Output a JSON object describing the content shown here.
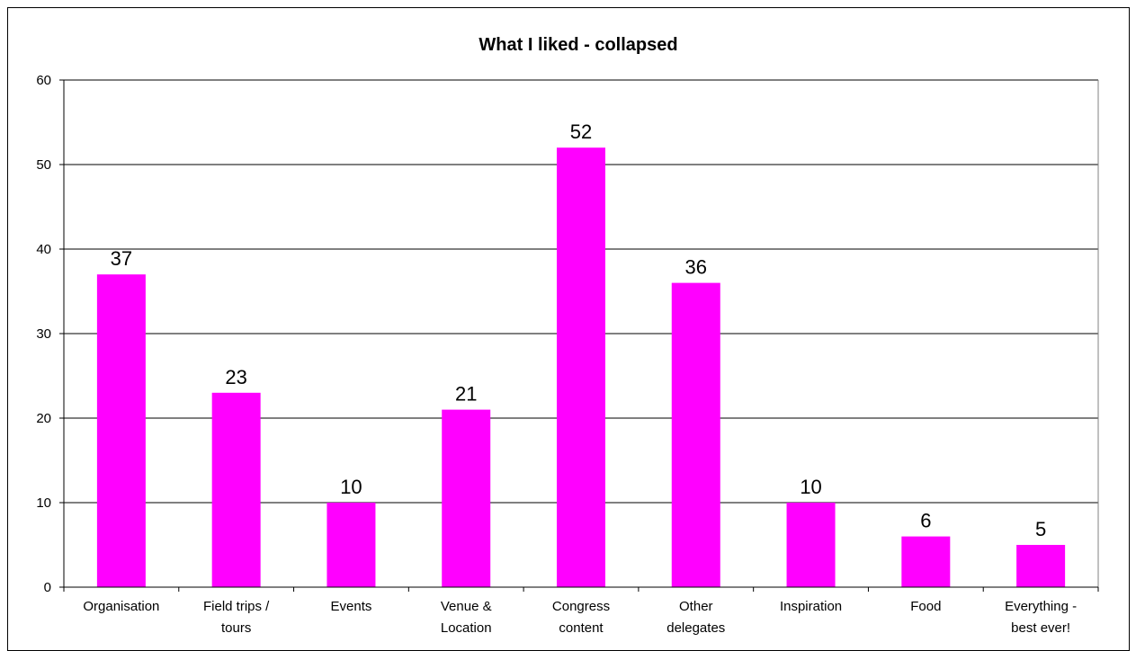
{
  "chart_data": {
    "type": "bar",
    "title": "What I liked - collapsed",
    "xlabel": "",
    "ylabel": "",
    "ylim": [
      0,
      60
    ],
    "yticks": [
      0,
      10,
      20,
      30,
      40,
      50,
      60
    ],
    "grid": true,
    "legend": "none",
    "categories": [
      [
        "Organisation"
      ],
      [
        "Field trips /",
        "tours"
      ],
      [
        "Events"
      ],
      [
        "Venue &",
        "Location"
      ],
      [
        "Congress",
        "content"
      ],
      [
        "Other",
        "delegates"
      ],
      [
        "Inspiration"
      ],
      [
        "Food"
      ],
      [
        "Everything -",
        "best ever!"
      ]
    ],
    "values": [
      37,
      23,
      10,
      21,
      52,
      36,
      10,
      6,
      5
    ],
    "bar_color": "#FF00FF"
  }
}
